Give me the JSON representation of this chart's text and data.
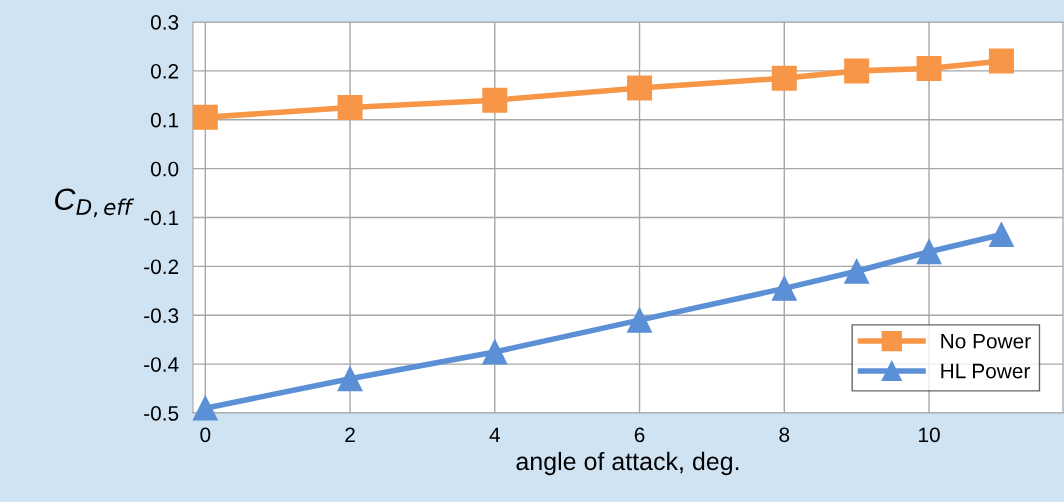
{
  "chart_data": {
    "type": "line",
    "xlabel": "angle of attack, deg.",
    "ylabel": "C$_{D,eff}$",
    "xlim": [
      -0.17,
      11.85
    ],
    "xticks": [
      0,
      2,
      4,
      6,
      8,
      10
    ],
    "ylim": [
      -0.5,
      0.3
    ],
    "yticks": [
      -0.5,
      -0.4,
      -0.3,
      -0.2,
      -0.1,
      {
        "value": 0,
        "label": "0.0"
      },
      0.1,
      0.2,
      0.3
    ],
    "grid": true,
    "legend": "bottom right",
    "series": [
      {
        "name": "No Power",
        "color": "#f79646",
        "marker": "square",
        "x": [
          0,
          2,
          4,
          6,
          8,
          9,
          10,
          11
        ],
        "values": [
          0.105,
          0.125,
          0.14,
          0.165,
          0.185,
          0.2,
          0.205,
          0.22
        ]
      },
      {
        "name": "HL Power",
        "color": "#5b8fd6",
        "marker": "triangle",
        "x": [
          0,
          2,
          4,
          6,
          8,
          9,
          10,
          11
        ],
        "values": [
          -0.49,
          -0.43,
          -0.375,
          -0.31,
          -0.245,
          -0.21,
          -0.17,
          -0.135
        ]
      }
    ]
  }
}
